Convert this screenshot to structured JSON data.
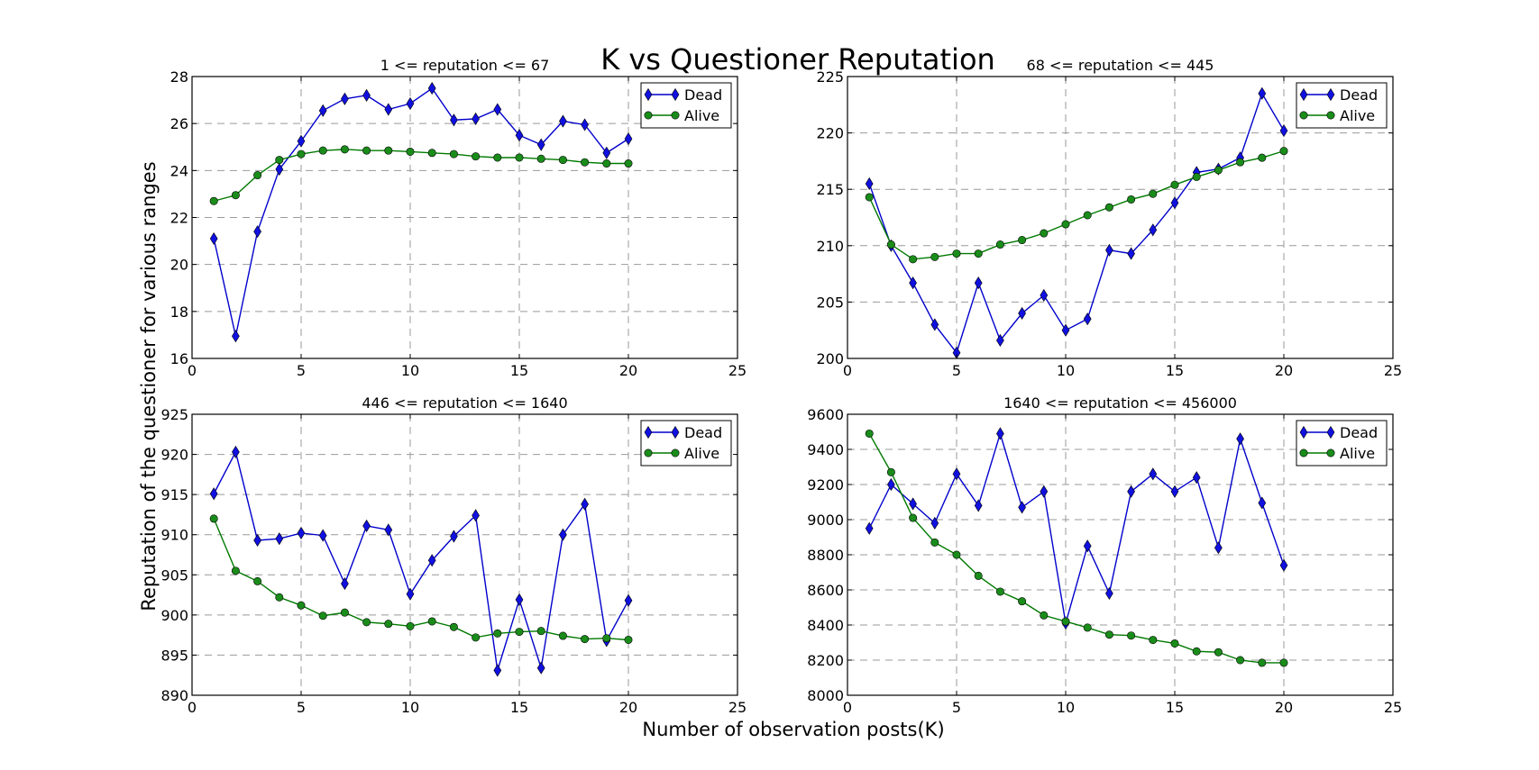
{
  "figure": {
    "title": "K vs Questioner Reputation",
    "xlabel": "Number of observation posts(K)",
    "ylabel": "Reputation of the questioner for various ranges"
  },
  "colors": {
    "dead": "#0000cc",
    "alive": "#007a00",
    "dead_fill": "#1010e0",
    "alive_fill": "#1a8c1a"
  },
  "chart_data": [
    {
      "type": "line",
      "title": "1 <= reputation  <= 67",
      "x": [
        1,
        2,
        3,
        4,
        5,
        6,
        7,
        8,
        9,
        10,
        11,
        12,
        13,
        14,
        15,
        16,
        17,
        18,
        19,
        20
      ],
      "xlim": [
        0,
        25
      ],
      "xticks": [
        0,
        5,
        10,
        15,
        20,
        25
      ],
      "ylim": [
        16,
        28
      ],
      "yticks": [
        16,
        18,
        20,
        22,
        24,
        26,
        28
      ],
      "grid": true,
      "legend": "top-right",
      "series": [
        {
          "name": "Dead",
          "marker": "diamond",
          "values": [
            21.1,
            16.95,
            21.4,
            24.05,
            25.25,
            26.55,
            27.05,
            27.2,
            26.6,
            26.85,
            27.5,
            26.15,
            26.2,
            26.6,
            25.5,
            25.1,
            26.1,
            25.95,
            24.75,
            25.35
          ]
        },
        {
          "name": "Alive",
          "marker": "circle",
          "values": [
            22.7,
            22.95,
            23.8,
            24.45,
            24.7,
            24.85,
            24.9,
            24.85,
            24.85,
            24.8,
            24.75,
            24.7,
            24.6,
            24.55,
            24.55,
            24.5,
            24.45,
            24.35,
            24.3,
            24.3
          ]
        }
      ]
    },
    {
      "type": "line",
      "title": "68 <= reputation  <= 445",
      "x": [
        1,
        2,
        3,
        4,
        5,
        6,
        7,
        8,
        9,
        10,
        11,
        12,
        13,
        14,
        15,
        16,
        17,
        18,
        19,
        20
      ],
      "xlim": [
        0,
        25
      ],
      "xticks": [
        0,
        5,
        10,
        15,
        20,
        25
      ],
      "ylim": [
        200,
        225
      ],
      "yticks": [
        200,
        205,
        210,
        215,
        220,
        225
      ],
      "grid": true,
      "legend": "top-right",
      "series": [
        {
          "name": "Dead",
          "marker": "diamond",
          "values": [
            215.5,
            210,
            206.7,
            203,
            200.5,
            206.7,
            201.6,
            204,
            205.6,
            202.5,
            203.5,
            209.6,
            209.3,
            211.4,
            213.8,
            216.5,
            216.8,
            217.8,
            223.5,
            220.2
          ]
        },
        {
          "name": "Alive",
          "marker": "circle",
          "values": [
            214.3,
            210.1,
            208.8,
            209,
            209.3,
            209.3,
            210.1,
            210.5,
            211.1,
            211.9,
            212.7,
            213.4,
            214.1,
            214.6,
            215.4,
            216.1,
            216.7,
            217.4,
            217.8,
            218.4
          ]
        }
      ]
    },
    {
      "type": "line",
      "title": "446 <= reputation  <= 1640",
      "x": [
        1,
        2,
        3,
        4,
        5,
        6,
        7,
        8,
        9,
        10,
        11,
        12,
        13,
        14,
        15,
        16,
        17,
        18,
        19,
        20
      ],
      "xlim": [
        0,
        25
      ],
      "xticks": [
        0,
        5,
        10,
        15,
        20,
        25
      ],
      "ylim": [
        890,
        925
      ],
      "yticks": [
        890,
        895,
        900,
        905,
        910,
        915,
        920,
        925
      ],
      "grid": true,
      "legend": "top-right",
      "series": [
        {
          "name": "Dead",
          "marker": "diamond",
          "values": [
            915.1,
            920.3,
            909.3,
            909.5,
            910.2,
            909.9,
            903.9,
            911.1,
            910.6,
            902.6,
            906.8,
            909.8,
            912.4,
            893.1,
            901.9,
            893.4,
            910,
            913.8,
            896.8,
            901.8
          ]
        },
        {
          "name": "Alive",
          "marker": "circle",
          "values": [
            912,
            905.5,
            904.2,
            902.2,
            901.2,
            899.9,
            900.3,
            899.1,
            898.9,
            898.6,
            899.2,
            898.5,
            897.2,
            897.7,
            897.9,
            898,
            897.4,
            897,
            897.1,
            896.9
          ]
        }
      ]
    },
    {
      "type": "line",
      "title": "1640 <= reputation  <= 456000",
      "x": [
        1,
        2,
        3,
        4,
        5,
        6,
        7,
        8,
        9,
        10,
        11,
        12,
        13,
        14,
        15,
        16,
        17,
        18,
        19,
        20
      ],
      "xlim": [
        0,
        25
      ],
      "xticks": [
        0,
        5,
        10,
        15,
        20,
        25
      ],
      "ylim": [
        8000,
        9600
      ],
      "yticks": [
        8000,
        8200,
        8400,
        8600,
        8800,
        9000,
        9200,
        9400,
        9600
      ],
      "grid": true,
      "legend": "top-right",
      "series": [
        {
          "name": "Dead",
          "marker": "diamond",
          "values": [
            8950,
            9200,
            9090,
            8980,
            9260,
            9080,
            9490,
            9070,
            9160,
            8410,
            8850,
            8580,
            9160,
            9260,
            9160,
            9240,
            8840,
            9460,
            9095,
            8740
          ]
        },
        {
          "name": "Alive",
          "marker": "circle",
          "values": [
            9490,
            9270,
            9010,
            8870,
            8800,
            8680,
            8590,
            8535,
            8455,
            8420,
            8385,
            8345,
            8340,
            8315,
            8295,
            8250,
            8245,
            8200,
            8185,
            8185
          ]
        }
      ]
    }
  ]
}
